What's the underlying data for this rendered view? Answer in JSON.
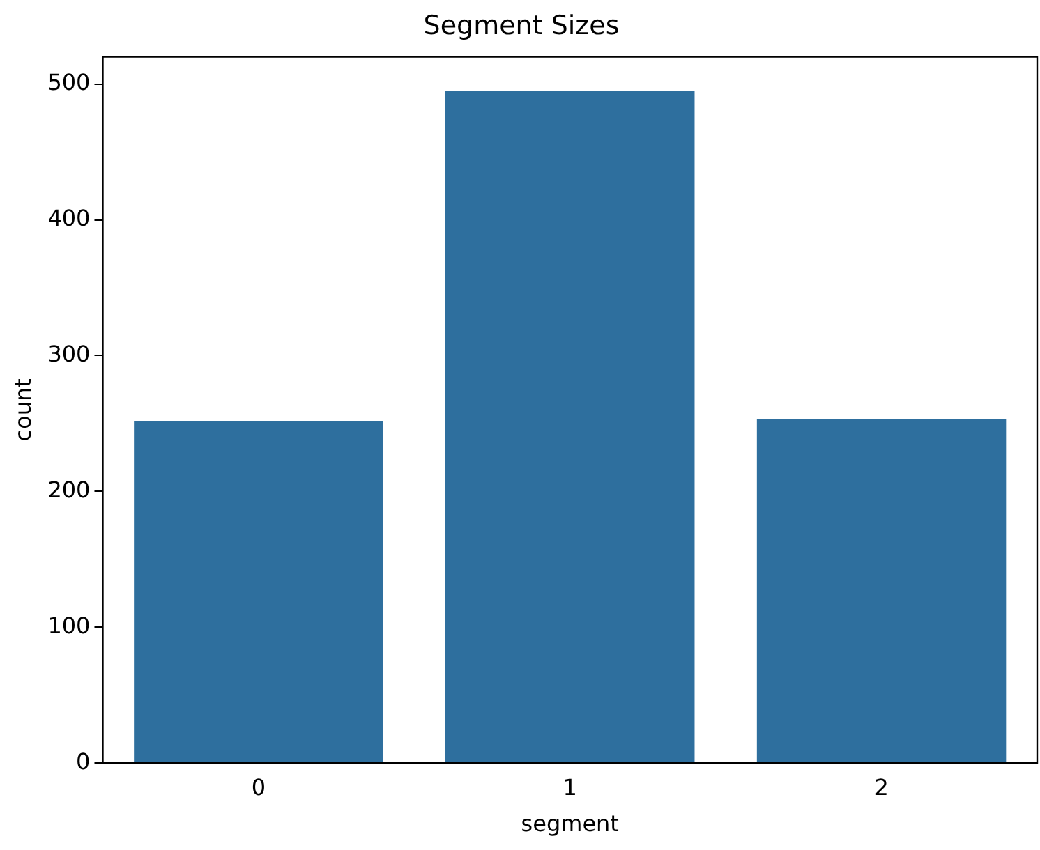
{
  "chart_data": {
    "type": "bar",
    "title": "Segment Sizes",
    "xlabel": "segment",
    "ylabel": "count",
    "categories": [
      "0",
      "1",
      "2"
    ],
    "values": [
      252,
      495,
      253
    ],
    "color": "#2e6f9e",
    "ylim": [
      0,
      520
    ],
    "yticks": [
      0,
      100,
      200,
      300,
      400,
      500
    ],
    "grid": false,
    "legend": false
  }
}
